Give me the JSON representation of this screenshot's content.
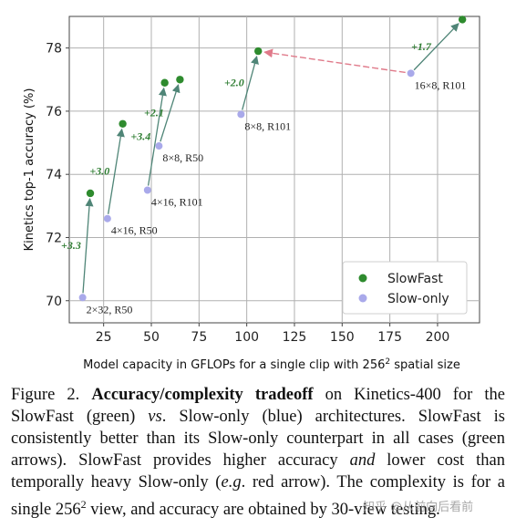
{
  "chart_data": {
    "type": "scatter",
    "xlabel_main": "Model capacity in GFLOPs for a single clip with 256",
    "xlabel_sup": "2",
    "xlabel_tail": " spatial size",
    "ylabel": "Kinetics top-1 accuracy (%)",
    "xlim": [
      7,
      222
    ],
    "ylim": [
      69.3,
      79.0
    ],
    "xticks": [
      25,
      50,
      75,
      100,
      125,
      150,
      175,
      200
    ],
    "yticks": [
      70,
      72,
      74,
      76,
      78
    ],
    "grid": true,
    "colors": {
      "slowfast": "#2e8b2e",
      "slowonly": "#a9a9ea",
      "arrow": "#4f8577",
      "red_arrow": "#e07a8a",
      "gain": "#2e7d32"
    },
    "legend": {
      "placement": "lower-right",
      "entries": [
        "SlowFast",
        "Slow-only"
      ]
    },
    "slow_only": [
      {
        "label": "2×32, R50",
        "x": 14,
        "y": 70.1
      },
      {
        "label": "4×16, R50",
        "x": 27,
        "y": 72.6
      },
      {
        "label": "4×16, R101",
        "x": 48,
        "y": 73.5
      },
      {
        "label": "8×8, R50",
        "x": 54,
        "y": 74.9
      },
      {
        "label": "8×8, R101",
        "x": 97,
        "y": 75.9
      },
      {
        "label": "16×8, R101",
        "x": 186,
        "y": 77.2
      }
    ],
    "slowfast": [
      {
        "x": 18,
        "y": 73.4
      },
      {
        "x": 35,
        "y": 75.6
      },
      {
        "x": 57,
        "y": 76.9
      },
      {
        "x": 65,
        "y": 77.0
      },
      {
        "x": 106,
        "y": 77.9
      },
      {
        "x": 213,
        "y": 78.9
      }
    ],
    "gains": [
      {
        "from": 0,
        "to": 0,
        "text": "+3.3"
      },
      {
        "from": 1,
        "to": 1,
        "text": "+3.0"
      },
      {
        "from": 2,
        "to": 2,
        "text": "+3.4"
      },
      {
        "from": 3,
        "to": 3,
        "text": "+2.1"
      },
      {
        "from": 4,
        "to": 4,
        "text": "+2.0"
      },
      {
        "from": 5,
        "to": 5,
        "text": "+1.7"
      }
    ],
    "red_arrow": {
      "from_slow_only": 5,
      "to_slowfast": 4
    }
  },
  "caption": {
    "figure_label": "Figure 2.",
    "title_bold": "Accuracy/complexity tradeoff",
    "t1": " on Kinetics-400 for the SlowFast (green) ",
    "vs": "vs",
    "t2": ". Slow-only (blue) architectures. SlowFast is consistently better than its Slow-only counterpart in all cases (green arrows). SlowFast provides higher accuracy ",
    "and": "and",
    "t3": " lower cost than temporally heavy Slow-only (",
    "eg": "e.g",
    "t4": ". red arrow). The complexity is for a single 256",
    "sup": "2",
    "t5": " view, and accuracy are obtained by 30-view testing."
  },
  "watermark": "知乎 @从前向后看前"
}
